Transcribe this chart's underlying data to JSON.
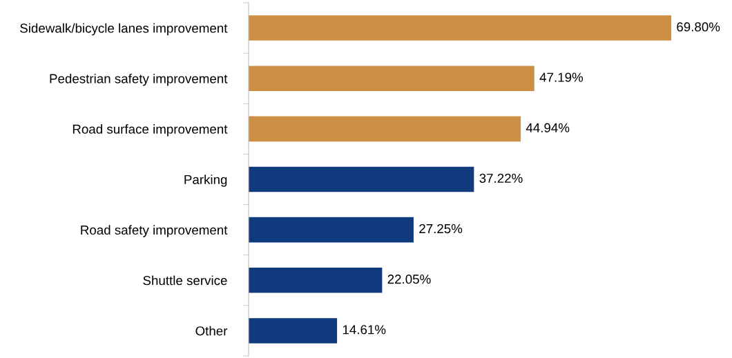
{
  "chart_data": {
    "type": "bar",
    "orientation": "horizontal",
    "categories": [
      "Sidewalk/bicycle lanes improvement",
      "Pedestrian safety improvement",
      "Road surface improvement",
      "Parking",
      "Road safety improvement",
      "Shuttle service",
      "Other"
    ],
    "values": [
      69.8,
      47.19,
      44.94,
      37.22,
      27.25,
      22.05,
      14.61
    ],
    "colors": [
      "#cd8f44",
      "#cd8f44",
      "#cd8f44",
      "#0f3a7d",
      "#0f3a7d",
      "#0f3a7d",
      "#0f3a7d"
    ],
    "value_labels": [
      "69.80%",
      "47.19%",
      "44.94%",
      "37.22%",
      "27.25%",
      "22.05%",
      "14.61%"
    ],
    "tick_labels": "y",
    "grid": false,
    "legend": false
  }
}
